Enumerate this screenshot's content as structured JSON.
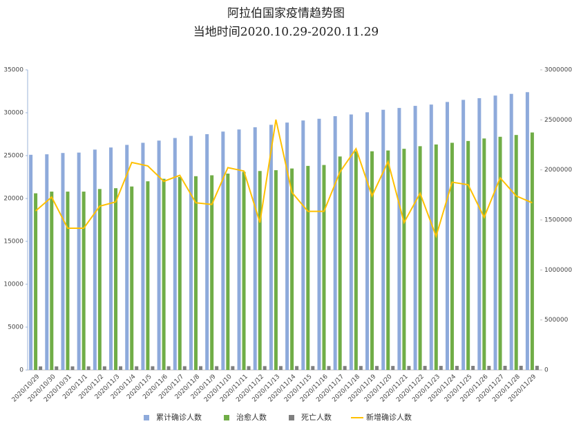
{
  "chart_data": {
    "type": "bar_line",
    "title": "阿拉伯国家疫情趋势图",
    "subtitle": "当地时间2020.10.29-2020.11.29",
    "categories": [
      "2020/10/29",
      "2020/10/30",
      "2020/10/31",
      "2020/11/1",
      "2020/11/2",
      "2020/11/3",
      "2020/11/4",
      "2020/11/5",
      "2020/11/6",
      "2020/11/7",
      "2020/11/8",
      "2020/11/9",
      "2020/11/10",
      "2020/11/11",
      "2020/11/12",
      "2020/11/13",
      "2020/11/14",
      "2020/11/15",
      "2020/11/16",
      "2020/11/17",
      "2020/11/18",
      "2020/11/19",
      "2020/11/20",
      "2020/11/21",
      "2020/11/22",
      "2020/11/23",
      "2020/11/24",
      "2020/11/25",
      "2020/11/26",
      "2020/11/27",
      "2020/11/28",
      "2020/11/29"
    ],
    "series": [
      {
        "name": "累计确诊人数",
        "type": "bar",
        "axis": "y2",
        "color": "#8eaadb",
        "values": [
          2151000,
          2156000,
          2169000,
          2173000,
          2203000,
          2224000,
          2250000,
          2271000,
          2293000,
          2319000,
          2340000,
          2357000,
          2383000,
          2404000,
          2426000,
          2451000,
          2473000,
          2494000,
          2511000,
          2537000,
          2554000,
          2576000,
          2601000,
          2619000,
          2640000,
          2653000,
          2679000,
          2700000,
          2717000,
          2743000,
          2760000,
          2777000
        ]
      },
      {
        "name": "治愈人数",
        "type": "bar",
        "axis": "y2",
        "color": "#70ad47",
        "values": [
          1766000,
          1783000,
          1783000,
          1783000,
          1809000,
          1817000,
          1834000,
          1886000,
          1911000,
          1929000,
          1937000,
          1946000,
          1963000,
          1980000,
          1989000,
          1997000,
          2014000,
          2040000,
          2049000,
          2134000,
          2186000,
          2186000,
          2194000,
          2211000,
          2237000,
          2254000,
          2271000,
          2289000,
          2314000,
          2331000,
          2349000,
          2374000
        ]
      },
      {
        "name": "死亡人数",
        "type": "bar",
        "axis": "y2",
        "color": "#7f7f7f",
        "values": [
          36000,
          36200,
          36400,
          36600,
          36800,
          37000,
          37200,
          37400,
          37600,
          37800,
          38000,
          38200,
          38400,
          38600,
          38800,
          39000,
          39200,
          39400,
          39600,
          39800,
          40000,
          40200,
          40400,
          40600,
          40800,
          41000,
          41200,
          41400,
          41600,
          41800,
          42000,
          42200
        ]
      },
      {
        "name": "新增确诊人数",
        "type": "line",
        "axis": "y",
        "color": "#ffc000",
        "values": [
          18550,
          20160,
          16530,
          16530,
          19100,
          19600,
          24200,
          23800,
          22000,
          22700,
          19500,
          19300,
          23600,
          23200,
          17200,
          29200,
          20700,
          18500,
          18500,
          23100,
          25800,
          20300,
          24300,
          17200,
          20600,
          15600,
          21900,
          21600,
          17800,
          22400,
          20300,
          19500
        ]
      }
    ],
    "ylim": [
      0,
      35000
    ],
    "yticks": [
      0,
      5000,
      10000,
      15000,
      20000,
      25000,
      30000,
      35000
    ],
    "y2lim": [
      0,
      3000000
    ],
    "y2ticks": [
      0,
      500000,
      1000000,
      1500000,
      2000000,
      2500000,
      3000000
    ],
    "grid": false,
    "legend": "bottom"
  }
}
